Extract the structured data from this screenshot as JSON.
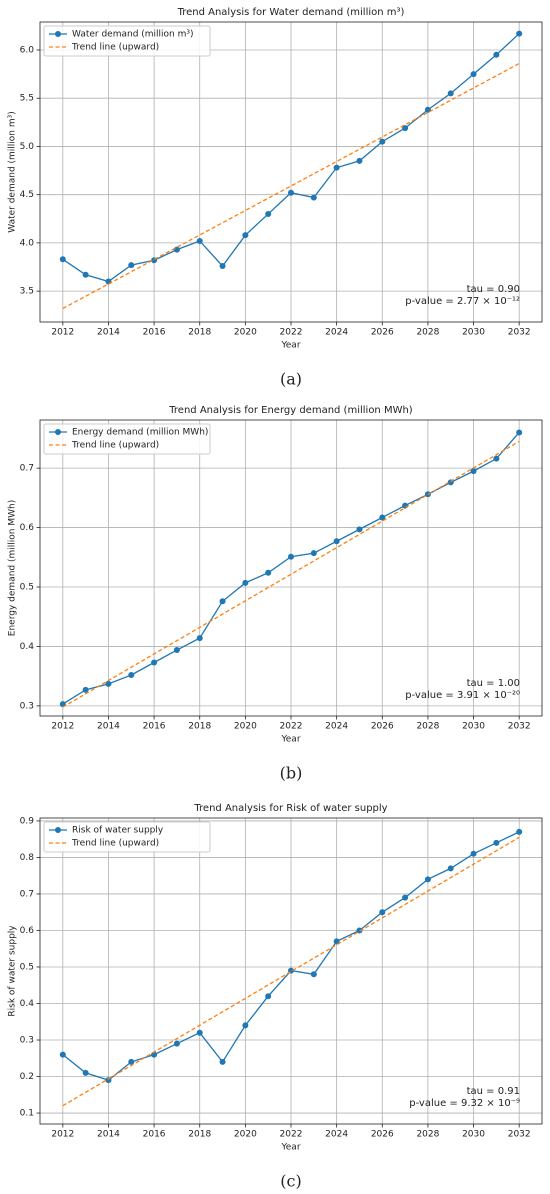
{
  "chart_data": [
    {
      "type": "line",
      "title": "Trend Analysis for Water demand (million m³)",
      "x_label": "Year",
      "y_label": "Water demand (million m³)",
      "caption": "(a)",
      "x": [
        2012,
        2013,
        2014,
        2015,
        2016,
        2017,
        2018,
        2019,
        2020,
        2021,
        2022,
        2023,
        2024,
        2025,
        2026,
        2027,
        2028,
        2029,
        2030,
        2031,
        2032
      ],
      "series": [
        {
          "name": "Water demand (million m³)",
          "color": "#1f77b4",
          "values": [
            3.83,
            3.67,
            3.6,
            3.77,
            3.82,
            3.93,
            4.02,
            3.76,
            4.08,
            4.3,
            4.52,
            4.47,
            4.78,
            4.85,
            5.05,
            5.19,
            5.38,
            5.55,
            5.75,
            5.95,
            6.17
          ]
        },
        {
          "name": "Trend line (upward)",
          "color": "#ff7f0e",
          "dashed": true,
          "x": [
            2012,
            2032
          ],
          "values": [
            3.32,
            5.86
          ]
        }
      ],
      "annotations": [
        "tau = 0.90",
        "p-value = 2.77 × 10⁻¹²"
      ],
      "xlim": [
        2011,
        2033
      ],
      "xticks": [
        2012,
        2014,
        2016,
        2018,
        2020,
        2022,
        2024,
        2026,
        2028,
        2030,
        2032
      ],
      "ylim": [
        3.18,
        6.29
      ],
      "yticks": [
        3.5,
        {
          "value": 4,
          "label": "4.0"
        },
        4.5,
        {
          "value": 5,
          "label": "5.0"
        },
        5.5,
        {
          "value": 6,
          "label": "6.0"
        }
      ],
      "grid": true,
      "legend": "upper left"
    },
    {
      "type": "line",
      "title": "Trend Analysis for Energy demand (million MWh)",
      "x_label": "Year",
      "y_label": "Energy demand (million MWh)",
      "caption": "(b)",
      "x": [
        2012,
        2013,
        2014,
        2015,
        2016,
        2017,
        2018,
        2019,
        2020,
        2021,
        2022,
        2023,
        2024,
        2025,
        2026,
        2027,
        2028,
        2029,
        2030,
        2031,
        2032
      ],
      "series": [
        {
          "name": "Energy demand (million MWh)",
          "color": "#1f77b4",
          "values": [
            0.303,
            0.327,
            0.337,
            0.352,
            0.373,
            0.394,
            0.414,
            0.476,
            0.507,
            0.524,
            0.551,
            0.557,
            0.577,
            0.597,
            0.617,
            0.637,
            0.656,
            0.676,
            0.695,
            0.716,
            0.76
          ]
        },
        {
          "name": "Trend line (upward)",
          "color": "#ff7f0e",
          "dashed": true,
          "x": [
            2012,
            2032
          ],
          "values": [
            0.298,
            0.745
          ]
        }
      ],
      "annotations": [
        "tau = 1.00",
        "p-value = 3.91 × 10⁻²⁰"
      ],
      "xlim": [
        2011,
        2033
      ],
      "xticks": [
        2012,
        2014,
        2016,
        2018,
        2020,
        2022,
        2024,
        2026,
        2028,
        2030,
        2032
      ],
      "ylim": [
        0.283,
        0.781
      ],
      "yticks": [
        0.3,
        0.4,
        0.5,
        0.6,
        0.7
      ],
      "grid": true,
      "legend": "upper left"
    },
    {
      "type": "line",
      "title": "Trend Analysis for Risk of water supply",
      "x_label": "Year",
      "y_label": "Risk of water supply",
      "caption": "(c)",
      "x": [
        2012,
        2013,
        2014,
        2015,
        2016,
        2017,
        2018,
        2019,
        2020,
        2021,
        2022,
        2023,
        2024,
        2025,
        2026,
        2027,
        2028,
        2029,
        2030,
        2031,
        2032
      ],
      "series": [
        {
          "name": "Risk of water supply",
          "color": "#1f77b4",
          "values": [
            0.26,
            0.21,
            0.19,
            0.24,
            0.26,
            0.29,
            0.32,
            0.24,
            0.34,
            0.42,
            0.49,
            0.48,
            0.57,
            0.6,
            0.65,
            0.69,
            0.74,
            0.77,
            0.81,
            0.84,
            0.87
          ]
        },
        {
          "name": "Trend line (upward)",
          "color": "#ff7f0e",
          "dashed": true,
          "x": [
            2012,
            2032
          ],
          "values": [
            0.12,
            0.855
          ]
        }
      ],
      "annotations": [
        "tau = 0.91",
        "p-value = 9.32 × 10⁻⁹"
      ],
      "xlim": [
        2011,
        2033
      ],
      "xticks": [
        2012,
        2014,
        2016,
        2018,
        2020,
        2022,
        2024,
        2026,
        2028,
        2030,
        2032
      ],
      "ylim": [
        0.07,
        0.908
      ],
      "yticks": [
        0.1,
        0.2,
        0.3,
        0.4,
        0.5,
        0.6,
        0.7,
        0.8,
        0.9
      ],
      "grid": true,
      "legend": "upper left"
    }
  ]
}
